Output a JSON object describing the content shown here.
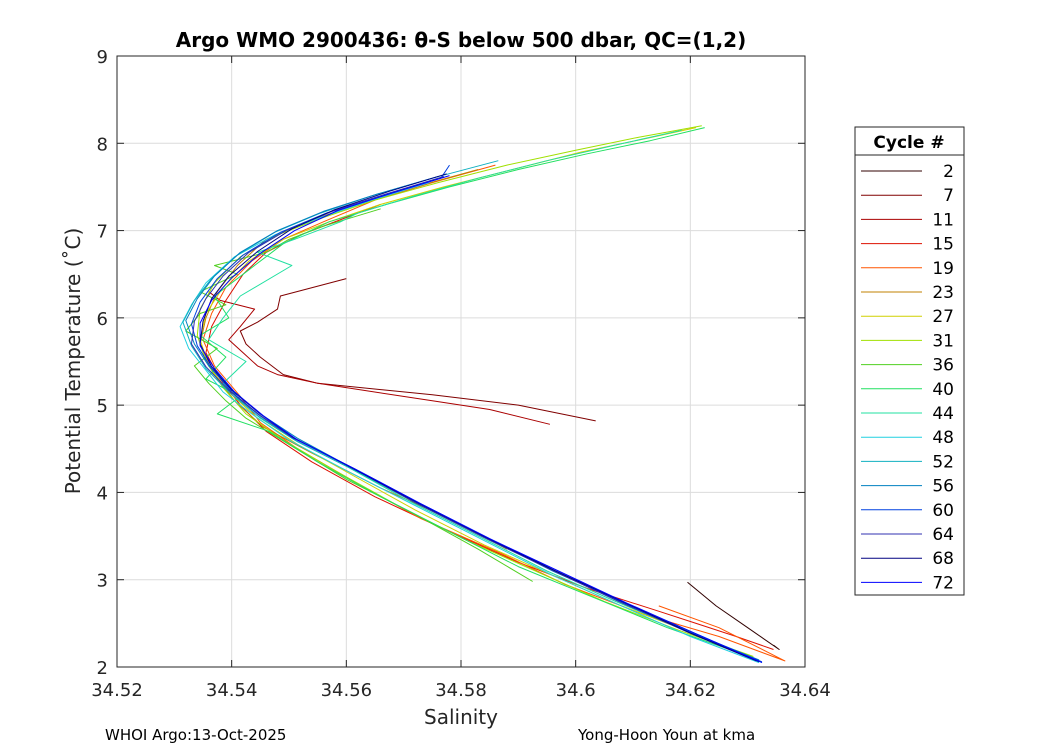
{
  "chart_data": {
    "type": "line",
    "title": "Argo WMO 2900436: θ-S below 500 dbar,  QC=(1,2)",
    "xlabel": "Salinity",
    "ylabel": "Potential Temperature (˚C)",
    "xlim": [
      34.52,
      34.64
    ],
    "ylim": [
      2,
      9
    ],
    "xticks": [
      "34.52",
      "34.54",
      "34.56",
      "34.58",
      "34.6",
      "34.62",
      "34.64"
    ],
    "yticks": [
      "2",
      "3",
      "4",
      "5",
      "6",
      "7",
      "8",
      "9"
    ],
    "grid": true,
    "legend_title": "Cycle #",
    "legend_position": "right",
    "footer_left": "WHOI Argo:13-Oct-2025",
    "footer_right": "Yong-Hoon Youn at kma",
    "series": [
      {
        "name": "2",
        "color": "#300000",
        "x": [
          34.6195,
          34.6245,
          34.63,
          34.6355,
          34.6345
        ],
        "y": [
          2.97,
          2.7,
          2.45,
          2.2,
          2.25
        ]
      },
      {
        "name": "7",
        "color": "#800000",
        "x": [
          34.6035,
          34.59,
          34.575,
          34.555,
          34.549,
          34.545,
          34.5425,
          34.5415,
          34.5445,
          34.548,
          34.5485,
          34.56
        ],
        "y": [
          4.82,
          5.0,
          5.12,
          5.25,
          5.35,
          5.55,
          5.7,
          5.85,
          5.95,
          6.1,
          6.25,
          6.45
        ]
      },
      {
        "name": "11",
        "color": "#aa0000",
        "x": [
          34.5955,
          34.585,
          34.575,
          34.555,
          34.548,
          34.5445,
          34.542,
          34.5395,
          34.5415,
          34.544,
          34.538,
          34.536
        ],
        "y": [
          4.78,
          4.95,
          5.05,
          5.25,
          5.35,
          5.45,
          5.6,
          5.75,
          5.9,
          6.1,
          6.2,
          6.3
        ]
      },
      {
        "name": "15",
        "color": "#dd1100",
        "x": [
          34.6345,
          34.628,
          34.621,
          34.614,
          34.602,
          34.59,
          34.578,
          34.565,
          34.554,
          34.546,
          34.5415,
          34.538,
          34.5355,
          34.5365,
          34.539,
          34.542,
          34.546,
          34.552,
          34.56,
          34.566
        ],
        "y": [
          2.2,
          2.35,
          2.5,
          2.65,
          2.9,
          3.2,
          3.55,
          3.95,
          4.35,
          4.7,
          5.0,
          5.3,
          5.6,
          5.9,
          6.2,
          6.5,
          6.75,
          6.95,
          7.15,
          7.3
        ]
      },
      {
        "name": "19",
        "color": "#ff5500",
        "x": [
          34.6145,
          34.625,
          34.6365,
          34.625,
          34.612,
          34.598,
          34.587,
          34.573,
          34.562,
          34.5515,
          34.545,
          34.5415,
          34.537,
          34.535,
          34.5365,
          34.539,
          34.5435,
          34.549,
          34.556,
          34.565,
          34.575,
          34.586
        ],
        "y": [
          2.7,
          2.45,
          2.07,
          2.35,
          2.6,
          2.95,
          3.3,
          3.7,
          4.1,
          4.5,
          4.8,
          5.1,
          5.45,
          5.75,
          6.05,
          6.35,
          6.65,
          6.9,
          7.1,
          7.35,
          7.55,
          7.75
        ]
      },
      {
        "name": "23",
        "color": "#c08000",
        "x": [
          34.588,
          34.578,
          34.566,
          34.554,
          34.5455,
          34.5405,
          34.5365,
          34.5345,
          34.5355,
          34.5375,
          34.541,
          34.546,
          34.553,
          34.562,
          34.572,
          34.583
        ],
        "y": [
          3.35,
          3.7,
          4.05,
          4.45,
          4.75,
          5.05,
          5.4,
          5.7,
          6.0,
          6.3,
          6.6,
          6.9,
          7.1,
          7.3,
          7.5,
          7.7
        ]
      },
      {
        "name": "27",
        "color": "#d0d000",
        "x": [
          34.631,
          34.62,
          34.608,
          34.596,
          34.584,
          34.572,
          34.561,
          34.5515,
          34.5445,
          34.5395,
          34.536,
          34.5345,
          34.5355,
          34.5385,
          34.543,
          34.549,
          34.557,
          34.566,
          34.577,
          34.589,
          34.601,
          34.612,
          34.621
        ],
        "y": [
          2.1,
          2.4,
          2.7,
          3.05,
          3.4,
          3.8,
          4.2,
          4.55,
          4.85,
          5.15,
          5.45,
          5.75,
          6.05,
          6.35,
          6.65,
          6.9,
          7.1,
          7.3,
          7.5,
          7.7,
          7.9,
          8.05,
          8.18
        ]
      },
      {
        "name": "31",
        "color": "#a0e000",
        "x": [
          34.631,
          34.618,
          34.605,
          34.593,
          34.581,
          34.569,
          34.558,
          34.549,
          34.5425,
          34.5385,
          34.5355,
          34.534,
          34.5345,
          34.537,
          34.5415,
          34.548,
          34.556,
          34.565,
          34.576,
          34.588,
          34.6,
          34.611,
          34.622
        ],
        "y": [
          2.12,
          2.42,
          2.75,
          3.1,
          3.45,
          3.85,
          4.25,
          4.6,
          4.9,
          5.2,
          5.5,
          5.8,
          6.1,
          6.4,
          6.7,
          6.95,
          7.15,
          7.35,
          7.55,
          7.75,
          7.92,
          8.07,
          8.2
        ]
      },
      {
        "name": "36",
        "color": "#50d020",
        "x": [
          34.5925,
          34.583,
          34.572,
          34.56,
          34.55,
          34.5425,
          34.539,
          34.536,
          34.5335,
          34.5375,
          34.532,
          34.5345,
          34.539,
          34.5345,
          34.541,
          34.537,
          34.546,
          34.55,
          34.556,
          34.566
        ],
        "y": [
          2.98,
          3.35,
          3.75,
          4.15,
          4.55,
          4.85,
          5.05,
          5.25,
          5.45,
          5.65,
          5.85,
          6.05,
          6.15,
          6.3,
          6.5,
          6.6,
          6.75,
          6.9,
          7.05,
          7.25
        ]
      },
      {
        "name": "40",
        "color": "#20e060",
        "x": [
          34.629,
          34.616,
          34.603,
          34.59,
          34.578,
          34.566,
          34.555,
          34.5465,
          34.5375,
          34.5415,
          34.5355,
          34.539,
          34.5345,
          34.5395,
          34.537,
          34.543,
          34.549,
          34.557,
          34.567,
          34.578,
          34.59,
          34.602,
          34.613,
          34.6225
        ],
        "y": [
          2.15,
          2.45,
          2.8,
          3.15,
          3.55,
          3.95,
          4.35,
          4.7,
          4.9,
          5.1,
          5.3,
          5.55,
          5.8,
          6.0,
          6.25,
          6.55,
          6.85,
          7.1,
          7.3,
          7.5,
          7.7,
          7.88,
          8.03,
          8.18
        ]
      },
      {
        "name": "44",
        "color": "#20e0a0",
        "x": [
          34.631,
          34.619,
          34.607,
          34.595,
          34.583,
          34.571,
          34.56,
          34.551,
          34.545,
          34.5415,
          34.5385,
          34.5425,
          34.536,
          34.5385,
          34.5415,
          34.5505,
          34.5445,
          34.551,
          34.559,
          34.562,
          34.572,
          34.583,
          34.595,
          34.607,
          34.6185
        ],
        "y": [
          2.1,
          2.42,
          2.75,
          3.1,
          3.5,
          3.9,
          4.3,
          4.6,
          4.85,
          5.05,
          5.25,
          5.5,
          5.75,
          6.0,
          6.25,
          6.6,
          6.75,
          6.9,
          7.1,
          7.2,
          7.4,
          7.6,
          7.8,
          7.98,
          8.15
        ]
      },
      {
        "name": "48",
        "color": "#20d0e0",
        "x": [
          34.632,
          34.62,
          34.608,
          34.596,
          34.584,
          34.572,
          34.56,
          34.55,
          34.5435,
          34.5385,
          34.5355,
          34.5325,
          34.531,
          34.533,
          34.5355,
          34.5405,
          34.5475,
          34.5555,
          34.5645,
          34.5745
        ],
        "y": [
          2.05,
          2.35,
          2.7,
          3.05,
          3.45,
          3.85,
          4.25,
          4.6,
          4.9,
          5.15,
          5.4,
          5.65,
          5.9,
          6.15,
          6.4,
          6.7,
          6.95,
          7.15,
          7.35,
          7.55
        ]
      },
      {
        "name": "52",
        "color": "#10b0c0",
        "x": [
          34.6325,
          34.621,
          34.609,
          34.597,
          34.585,
          34.573,
          34.5615,
          34.5515,
          34.5445,
          34.5395,
          34.5355,
          34.533,
          34.5315,
          34.5335,
          34.5365,
          34.541,
          34.5475,
          34.5555,
          34.5645,
          34.575,
          34.5865
        ],
        "y": [
          2.05,
          2.38,
          2.72,
          3.08,
          3.45,
          3.85,
          4.25,
          4.58,
          4.88,
          5.15,
          5.42,
          5.68,
          5.95,
          6.2,
          6.45,
          6.72,
          6.98,
          7.2,
          7.4,
          7.6,
          7.8
        ]
      },
      {
        "name": "56",
        "color": "#0080c0",
        "x": [
          34.632,
          34.62,
          34.608,
          34.596,
          34.5845,
          34.5725,
          34.561,
          34.5515,
          34.545,
          34.54,
          34.536,
          34.5335,
          34.532,
          34.534,
          34.537,
          34.5415,
          34.548,
          34.556,
          34.5655,
          34.576
        ],
        "y": [
          2.08,
          2.4,
          2.75,
          3.1,
          3.48,
          3.88,
          4.28,
          4.62,
          4.9,
          5.18,
          5.45,
          5.7,
          5.97,
          6.22,
          6.48,
          6.75,
          7.0,
          7.22,
          7.42,
          7.62
        ]
      },
      {
        "name": "60",
        "color": "#0040e0",
        "x": [
          34.6325,
          34.6205,
          34.6085,
          34.5965,
          34.585,
          34.573,
          34.5615,
          34.5515,
          34.545,
          34.54,
          34.5365,
          34.534,
          34.533,
          34.5345,
          34.5375,
          34.542,
          34.5485,
          34.5565,
          34.566,
          34.5765,
          34.578
        ],
        "y": [
          2.06,
          2.38,
          2.73,
          3.1,
          3.47,
          3.87,
          4.27,
          4.6,
          4.88,
          5.15,
          5.42,
          5.68,
          5.93,
          6.18,
          6.45,
          6.72,
          6.98,
          7.2,
          7.4,
          7.6,
          7.75
        ]
      },
      {
        "name": "64",
        "color": "#3030b0",
        "x": [
          34.6315,
          34.6195,
          34.6075,
          34.5955,
          34.5835,
          34.5715,
          34.5605,
          34.5505,
          34.5445,
          34.5395,
          34.5355,
          34.533,
          34.5335,
          34.5355,
          34.5385,
          34.543,
          34.5495,
          34.5575,
          34.567,
          34.577
        ],
        "y": [
          2.07,
          2.4,
          2.75,
          3.12,
          3.5,
          3.9,
          4.3,
          4.63,
          4.9,
          5.17,
          5.44,
          5.7,
          5.96,
          6.22,
          6.48,
          6.75,
          7.0,
          7.22,
          7.42,
          7.62
        ]
      },
      {
        "name": "68",
        "color": "#000080",
        "x": [
          34.632,
          34.62,
          34.6085,
          34.5965,
          34.5845,
          34.5725,
          34.561,
          34.551,
          34.545,
          34.54,
          34.5365,
          34.5345,
          34.535,
          34.5365,
          34.5395,
          34.5445,
          34.5505,
          34.558,
          34.5675,
          34.5775
        ],
        "y": [
          2.06,
          2.39,
          2.74,
          3.1,
          3.48,
          3.88,
          4.28,
          4.62,
          4.9,
          5.17,
          5.44,
          5.7,
          5.96,
          6.22,
          6.48,
          6.76,
          7.02,
          7.24,
          7.45,
          7.65
        ]
      },
      {
        "name": "72",
        "color": "#0000ff",
        "x": [
          34.6325,
          34.621,
          34.609,
          34.597,
          34.585,
          34.573,
          34.5615,
          34.5515,
          34.5455,
          34.5405,
          34.537,
          34.5345,
          34.5345,
          34.5365,
          34.54,
          34.545,
          34.551,
          34.5585,
          34.568,
          34.578
        ],
        "y": [
          2.05,
          2.38,
          2.73,
          3.1,
          3.47,
          3.87,
          4.27,
          4.6,
          4.88,
          5.15,
          5.42,
          5.68,
          5.94,
          6.2,
          6.46,
          6.74,
          7.0,
          7.23,
          7.43,
          7.63
        ]
      }
    ]
  }
}
